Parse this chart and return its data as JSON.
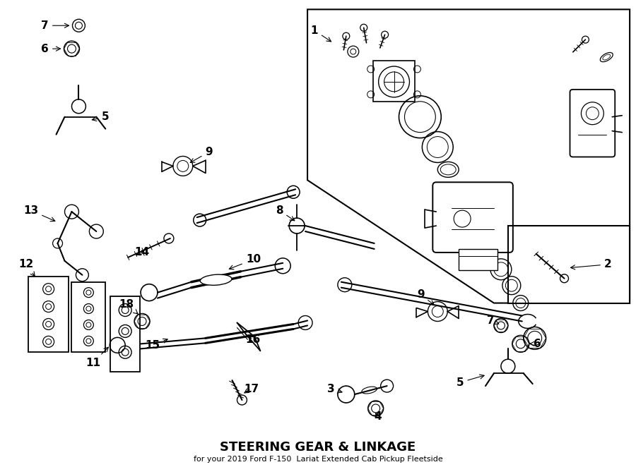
{
  "title": "STEERING GEAR & LINKAGE",
  "subtitle": "for your 2019 Ford F-150  Lariat Extended Cab Pickup Fleetside",
  "bg_color": "#ffffff",
  "line_color": "#000000",
  "fig_width": 9.0,
  "fig_height": 6.62,
  "dpi": 100
}
